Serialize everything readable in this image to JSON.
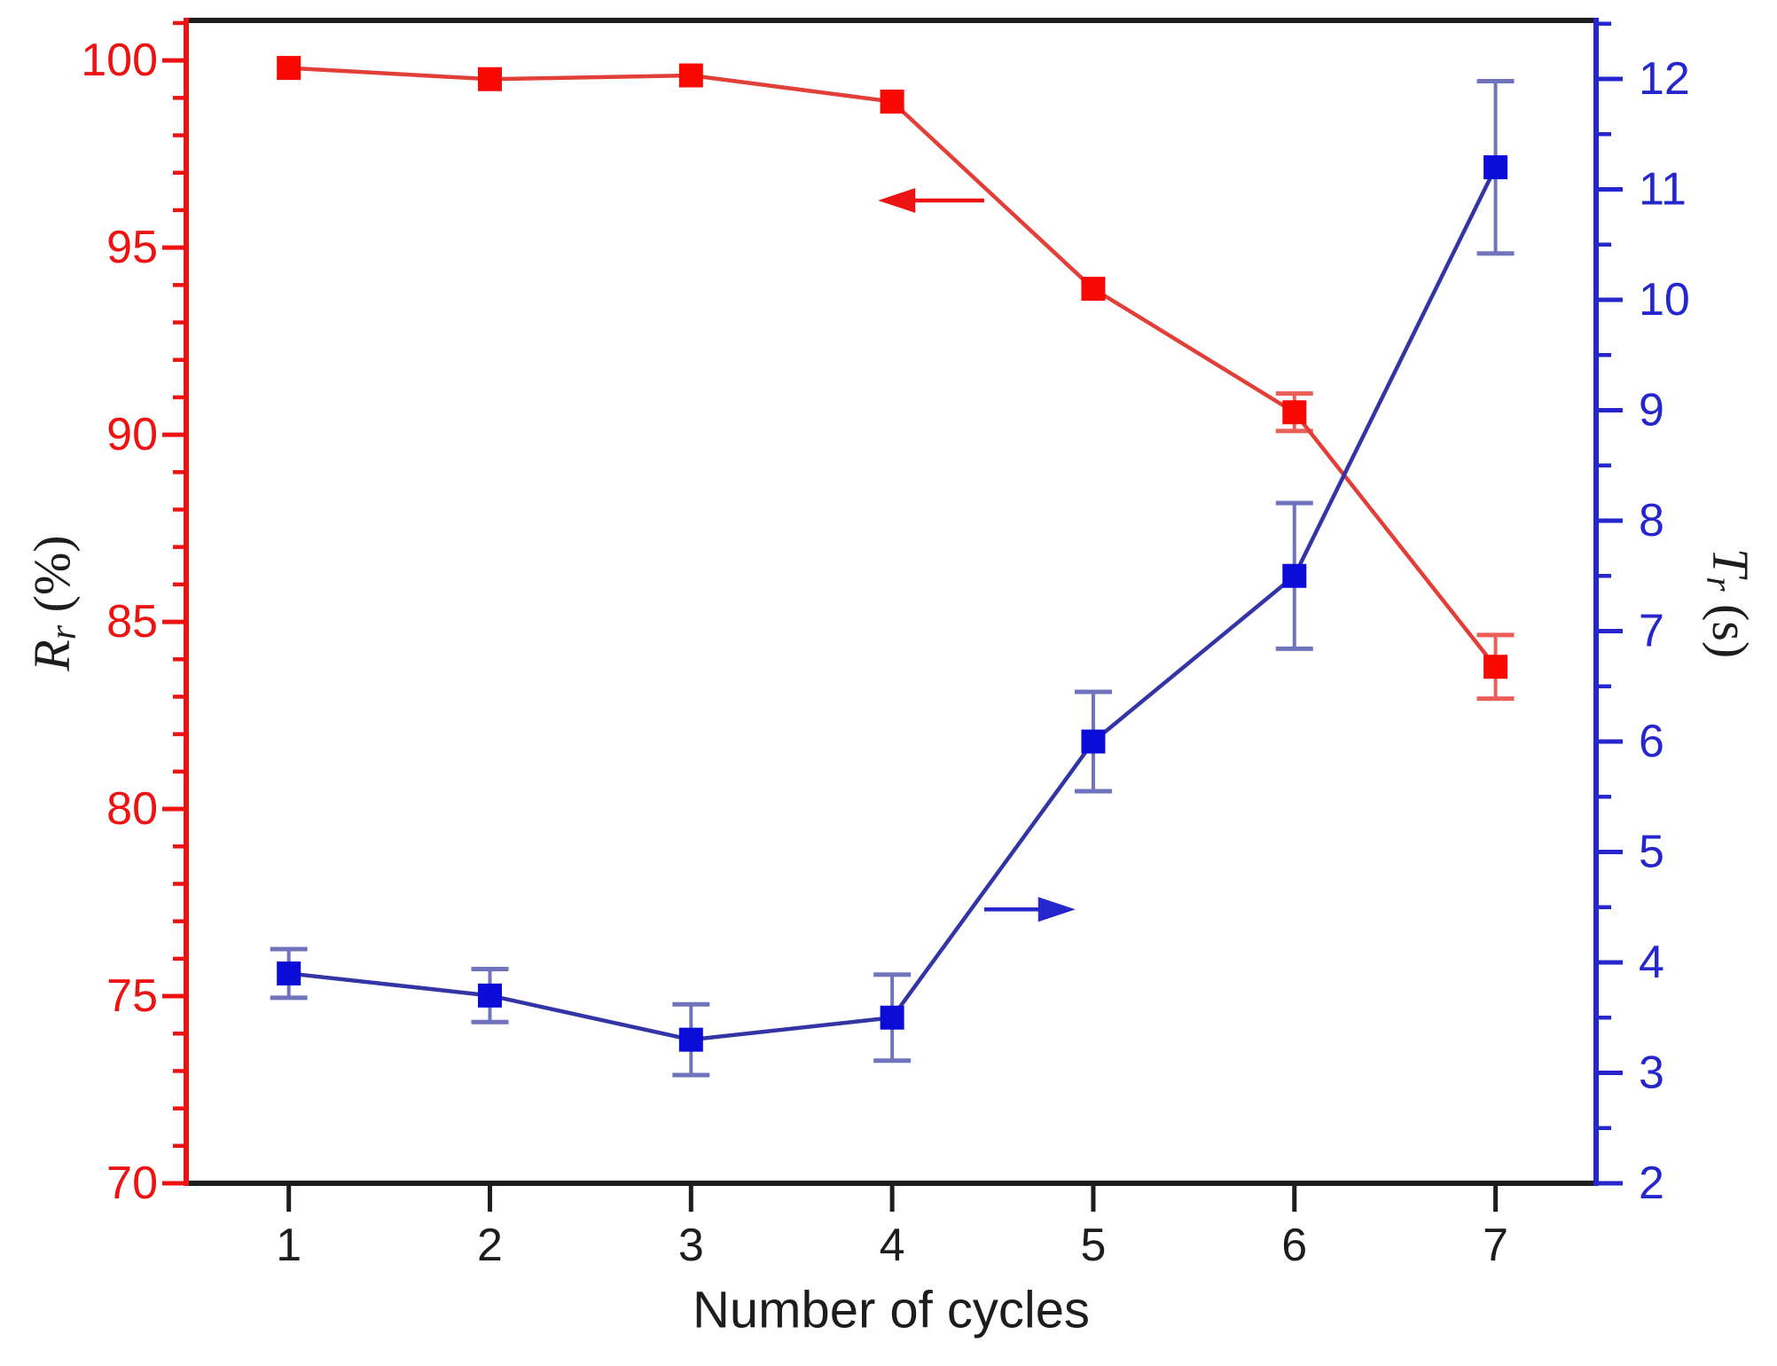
{
  "chart_data": {
    "type": "line",
    "title": "",
    "grid": false,
    "legend": null,
    "x_axis": {
      "label": "Number of cycles",
      "ticks": [
        1,
        2,
        3,
        4,
        5,
        6,
        7
      ],
      "range": [
        0.49,
        7.5
      ],
      "color": "#1d1d1d"
    },
    "left_axis": {
      "label": "Rr (%)",
      "label_main": "R",
      "label_sub": "r",
      "label_unit": " (%)",
      "ticks": [
        70,
        75,
        80,
        85,
        90,
        95,
        100
      ],
      "minor_tick_step": 1,
      "range": [
        70,
        101.07
      ],
      "color": "#ed1312"
    },
    "right_axis": {
      "label": "Tr (s)",
      "label_main": "T",
      "label_sub": "r",
      "label_unit": " (s)",
      "ticks": [
        2,
        3,
        4,
        5,
        6,
        7,
        8,
        9,
        10,
        11,
        12
      ],
      "minor_tick_step": 0.5,
      "range": [
        2,
        12.53
      ],
      "color": "#2526cb"
    },
    "series": [
      {
        "name": "Rr (%)",
        "axis": "left",
        "marker": "square",
        "x": [
          1,
          2,
          3,
          4,
          5,
          6,
          7
        ],
        "values": [
          99.8,
          99.5,
          99.6,
          98.9,
          93.9,
          90.6,
          83.8
        ],
        "errors": [
          0,
          0,
          0,
          0,
          0,
          0.5,
          0.85
        ],
        "line_color": "#e23f38",
        "marker_color": "#f90703",
        "error_color": "#ea6059"
      },
      {
        "name": "Tr (s)",
        "axis": "right",
        "marker": "square",
        "x": [
          1,
          2,
          3,
          4,
          5,
          6,
          7
        ],
        "values": [
          3.9,
          3.7,
          3.3,
          3.5,
          6.0,
          7.5,
          11.2
        ],
        "errors": [
          0.22,
          0.24,
          0.32,
          0.39,
          0.45,
          0.66,
          0.78
        ],
        "line_color": "#3334a6",
        "marker_color": "#0c0cd8",
        "error_color": "#7173bd"
      }
    ],
    "annotations": [
      {
        "type": "arrow",
        "points_to": "left-axis",
        "axis": "left",
        "y_value": 96.26,
        "x_from": 4.458,
        "x_to": 3.93,
        "color": "#ed1312"
      },
      {
        "type": "arrow",
        "points_to": "right-axis",
        "axis": "right",
        "y_value": 4.48,
        "x_from": 4.458,
        "x_to": 4.911,
        "color": "#2526cb"
      }
    ]
  }
}
